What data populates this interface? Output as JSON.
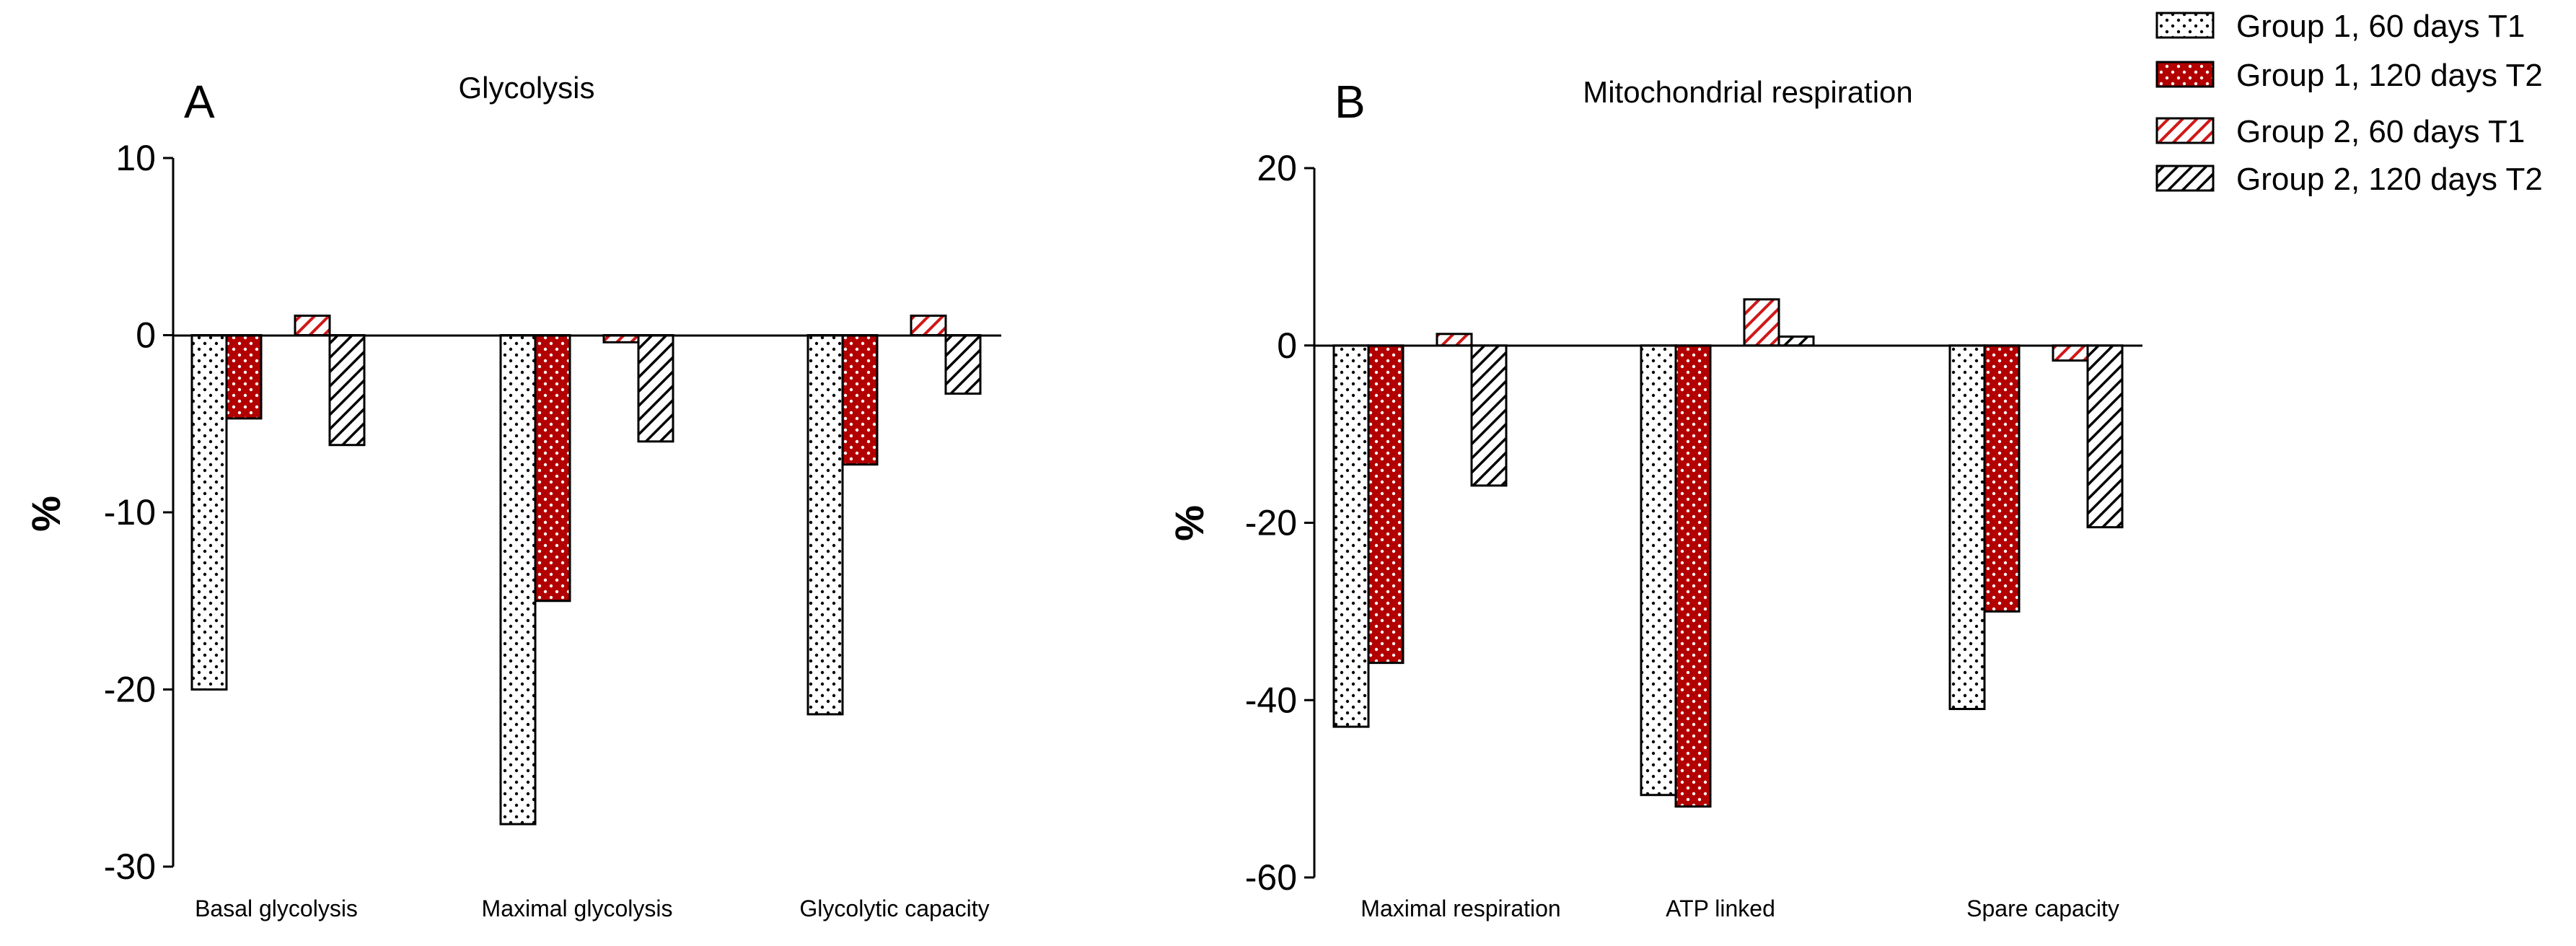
{
  "legend": [
    {
      "name": "Group 1, 60 days T1",
      "pattern": "dots-white"
    },
    {
      "name": "Group 1, 120 days T2",
      "pattern": "dots-red"
    },
    {
      "name": "Group 2, 60 days T1",
      "pattern": "hatch-red"
    },
    {
      "name": "Group 2, 120 days T2",
      "pattern": "hatch-black"
    }
  ],
  "colors": {
    "red": "#b20000",
    "hatch_red": "#d01818",
    "black": "#000000",
    "white": "#ffffff"
  },
  "chart_data": [
    {
      "type": "bar",
      "panel": "A",
      "title": "Glycolysis",
      "xlabel": "",
      "ylabel": "%",
      "ylim": [
        -30,
        10
      ],
      "yticks": [
        10,
        0,
        -10,
        -20,
        -30
      ],
      "ytick_labels": [
        "10",
        "0",
        "-10",
        "-20",
        "-30"
      ],
      "categories": [
        "Basal glycolysis",
        "Maximal glycolysis",
        "Glycolytic capacity"
      ],
      "series": [
        {
          "name": "Group 1, 60 days T1",
          "values": [
            -20,
            -27.6,
            -21.4
          ]
        },
        {
          "name": "Group 1, 120 days T2",
          "values": [
            -4.7,
            -15,
            -7.3
          ]
        },
        {
          "name": "Group 2, 60 days T1",
          "values": [
            1.1,
            -0.4,
            1.1
          ]
        },
        {
          "name": "Group 2, 120 days T2",
          "values": [
            -6.2,
            -6,
            -3.3
          ]
        }
      ]
    },
    {
      "type": "bar",
      "panel": "B",
      "title": "Mitochondrial respiration",
      "xlabel": "",
      "ylabel": "%",
      "ylim": [
        -60,
        20
      ],
      "yticks": [
        20,
        0,
        -20,
        -40,
        -60
      ],
      "ytick_labels": [
        "20",
        "0",
        "-20",
        "-40",
        "-60"
      ],
      "categories": [
        "Maximal respiration",
        "ATP linked",
        "Spare capacity"
      ],
      "series": [
        {
          "name": "Group 1, 60 days T1",
          "values": [
            -43,
            -50.7,
            -41
          ]
        },
        {
          "name": "Group 1, 120 days T2",
          "values": [
            -35.8,
            -52,
            -30
          ]
        },
        {
          "name": "Group 2, 60 days T1",
          "values": [
            1.3,
            5.2,
            -1.7
          ]
        },
        {
          "name": "Group 2, 120 days T2",
          "values": [
            -15.8,
            1,
            -20.5
          ]
        }
      ]
    }
  ]
}
